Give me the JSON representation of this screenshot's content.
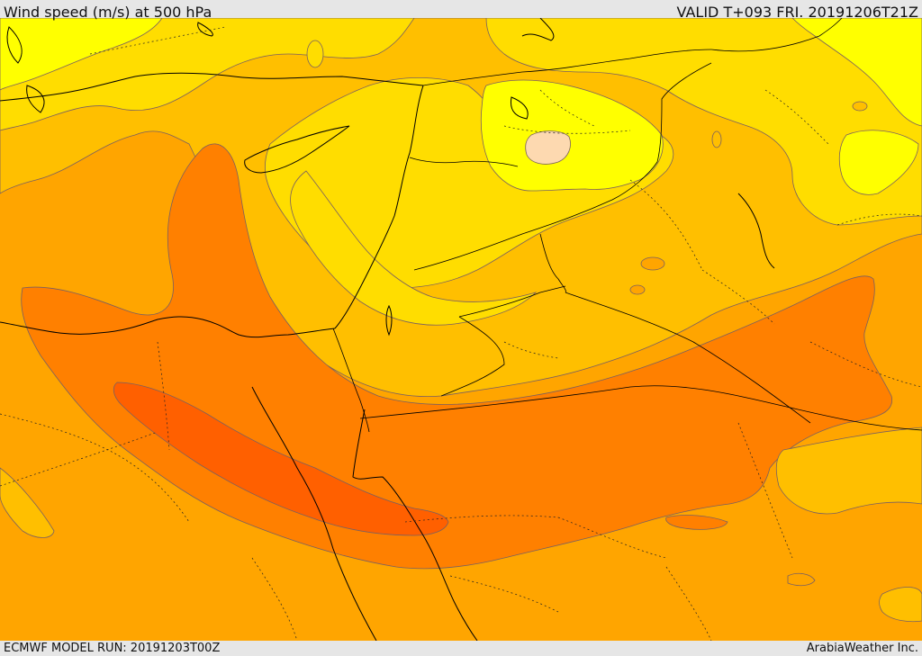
{
  "header": {
    "title": "Wind speed (m/s) at 500 hPa",
    "valid": "VALID T+093 FRI. 20191206T21Z"
  },
  "footer": {
    "model_run": "ECMWF MODEL RUN: 20191203T00Z",
    "credit": "ArabiaWeather Inc."
  },
  "colors": {
    "band_lt": "#ffff00",
    "band_y": "#ffdd00",
    "band_y2": "#ffbf00",
    "band_o": "#ffa500",
    "band_o2": "#ff8000",
    "band_o3": "#ff6000",
    "peak_min": "#fdd9b0"
  }
}
